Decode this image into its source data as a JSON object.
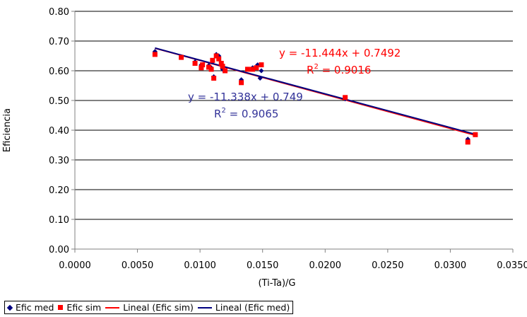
{
  "chart_data": {
    "type": "scatter",
    "xlabel": "(Ti-Ta)/G",
    "ylabel": "Eficiencia",
    "xlim": [
      0,
      0.035
    ],
    "ylim": [
      0,
      0.8
    ],
    "x_ticks": [
      "0.0000",
      "0.0050",
      "0.0100",
      "0.0150",
      "0.0200",
      "0.0250",
      "0.0300",
      "0.0350"
    ],
    "y_ticks": [
      "0.00",
      "0.10",
      "0.20",
      "0.30",
      "0.40",
      "0.50",
      "0.60",
      "0.70",
      "0.80"
    ],
    "grid": "horizontal",
    "legend_position": "bottom",
    "series": [
      {
        "name": "Efic med",
        "marker": "diamond",
        "color": "#000080",
        "points": [
          [
            0.0064,
            0.665
          ],
          [
            0.0085,
            0.645
          ],
          [
            0.0096,
            0.63
          ],
          [
            0.0101,
            0.62
          ],
          [
            0.0101,
            0.612
          ],
          [
            0.0107,
            0.618
          ],
          [
            0.0109,
            0.61
          ],
          [
            0.011,
            0.63
          ],
          [
            0.0111,
            0.58
          ],
          [
            0.0113,
            0.655
          ],
          [
            0.0115,
            0.65
          ],
          [
            0.0117,
            0.62
          ],
          [
            0.0118,
            0.605
          ],
          [
            0.012,
            0.6
          ],
          [
            0.0133,
            0.57
          ],
          [
            0.0138,
            0.605
          ],
          [
            0.0142,
            0.61
          ],
          [
            0.0146,
            0.62
          ],
          [
            0.0148,
            0.575
          ],
          [
            0.0149,
            0.6
          ],
          [
            0.0216,
            0.505
          ],
          [
            0.0314,
            0.37
          ],
          [
            0.032,
            0.385
          ]
        ]
      },
      {
        "name": "Efic sim",
        "marker": "square",
        "color": "#ff0000",
        "points": [
          [
            0.0064,
            0.655
          ],
          [
            0.0085,
            0.645
          ],
          [
            0.0096,
            0.625
          ],
          [
            0.0101,
            0.61
          ],
          [
            0.0102,
            0.62
          ],
          [
            0.0107,
            0.612
          ],
          [
            0.0109,
            0.605
          ],
          [
            0.011,
            0.635
          ],
          [
            0.0111,
            0.575
          ],
          [
            0.0113,
            0.65
          ],
          [
            0.0115,
            0.64
          ],
          [
            0.0117,
            0.625
          ],
          [
            0.0118,
            0.615
          ],
          [
            0.012,
            0.6
          ],
          [
            0.0133,
            0.56
          ],
          [
            0.0138,
            0.605
          ],
          [
            0.0142,
            0.605
          ],
          [
            0.0145,
            0.61
          ],
          [
            0.0149,
            0.62
          ],
          [
            0.0216,
            0.51
          ],
          [
            0.0314,
            0.36
          ],
          [
            0.032,
            0.385
          ]
        ]
      },
      {
        "name": "Lineal (Efic sim)",
        "type": "trendline",
        "color": "#ff0000",
        "slope": -11.444,
        "intercept": 0.7492,
        "x_range": [
          0.0064,
          0.032
        ]
      },
      {
        "name": "Lineal (Efic med)",
        "type": "trendline",
        "color": "#000080",
        "slope": -11.338,
        "intercept": 0.749,
        "x_range": [
          0.0064,
          0.032
        ]
      }
    ],
    "annotations": [
      {
        "series": "Lineal (Efic sim)",
        "equation": "y = -11.444x + 0.7492",
        "r2_prefix": "R",
        "r2_exp": "2",
        "r2_value": " = 0.9016"
      },
      {
        "series": "Lineal (Efic med)",
        "equation": "y = -11.338x + 0.749",
        "r2_prefix": "R",
        "r2_exp": "2",
        "r2_value": " = 0.9065"
      }
    ]
  }
}
